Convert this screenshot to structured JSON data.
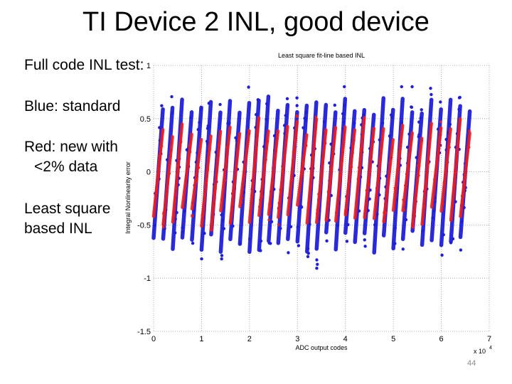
{
  "slide": {
    "title": "TI Device 2 INL, good device",
    "bullets": [
      {
        "line1": "Full code INL test:"
      },
      {
        "line1": "Blue: standard"
      },
      {
        "line1": "Red: new with",
        "line2": "<2% data"
      },
      {
        "line1": "Least square",
        "line2": "based INL"
      }
    ],
    "slide_number": "44"
  },
  "chart_data": {
    "type": "scatter",
    "title": "Least square fit-line based INL",
    "xlabel": "ADC output codes",
    "ylabel": "Integral Nonlinearity error",
    "x_multiplier": "x 10",
    "x_multiplier_exp": "4",
    "xlim": [
      0,
      7
    ],
    "ylim": [
      -1.5,
      1
    ],
    "x_ticks": [
      0,
      1,
      2,
      3,
      4,
      5,
      6,
      7
    ],
    "y_ticks": [
      1,
      0.5,
      0,
      -0.5,
      -1,
      -1.5
    ],
    "x_tick_labels": [
      "0",
      "1",
      "2",
      "3",
      "4",
      "5",
      "6",
      "7"
    ],
    "y_tick_labels": [
      "1",
      "0.5",
      "0",
      "-0.5",
      "-1",
      "-1.5"
    ],
    "grid": true,
    "data_x_end": 6.55,
    "sawtooth_period": 0.2,
    "series": [
      {
        "name": "Blue: standard",
        "color": "#1f1fd8",
        "y_low": -0.95,
        "y_high": 0.8,
        "center_range": [
          -0.05,
          0.0
        ]
      },
      {
        "name": "Red: new with <2% data",
        "color": "#ee1c1c",
        "y_low": -0.55,
        "y_high": 0.55,
        "center_range": [
          -0.1,
          0.05
        ]
      }
    ]
  }
}
